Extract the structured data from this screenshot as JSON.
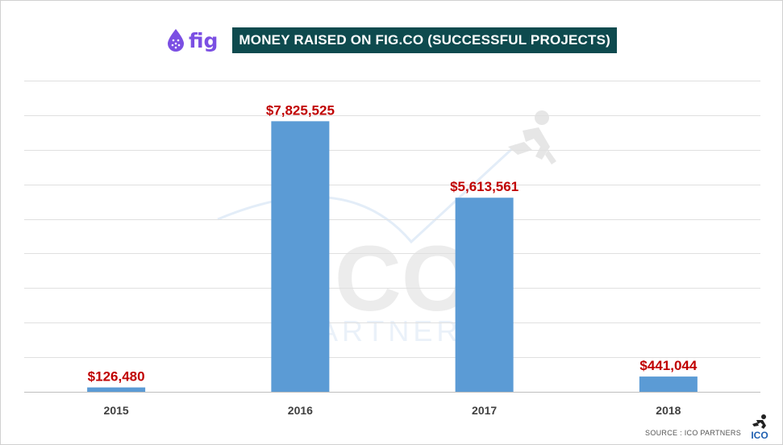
{
  "header": {
    "logo_text": "fig",
    "title": "MONEY RAISED ON FIG.CO (SUCCESSFUL PROJECTS)"
  },
  "watermark": {
    "text": "ICO PARTNERS",
    "line1": "ICO",
    "line2": "PARTNERS"
  },
  "footer": {
    "source": "SOURCE : ICO PARTNERS",
    "badge": "ICO"
  },
  "colors": {
    "bar": "#5b9bd5",
    "label": "#c00000",
    "title_bg": "#0e4a4e",
    "logo": "#7b4fe3"
  },
  "icons": [
    "fig-drop-icon",
    "runner-watermark-icon",
    "ico-runner-icon"
  ],
  "chart_data": {
    "type": "bar",
    "title": "MONEY RAISED ON FIG.CO (SUCCESSFUL PROJECTS)",
    "categories": [
      "2015",
      "2016",
      "2017",
      "2018"
    ],
    "values": [
      126480,
      7825525,
      5613561,
      441044
    ],
    "value_labels": [
      "$126,480",
      "$7,825,525",
      "$5,613,561",
      "$441,044"
    ],
    "xlabel": "",
    "ylabel": "",
    "ylim": [
      0,
      9000000
    ],
    "grid": true,
    "legend": "none"
  }
}
